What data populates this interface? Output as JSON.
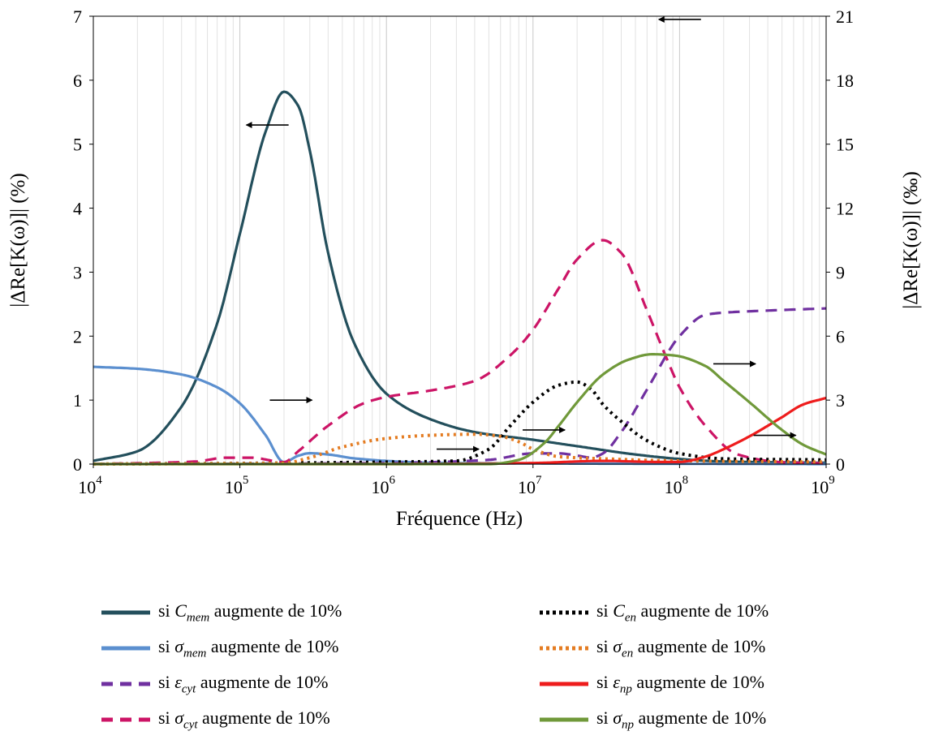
{
  "chart_data": {
    "type": "line",
    "xlabel": "Fréquence (Hz)",
    "ylabel_left": "|ΔRe[K(ω)]| (%)",
    "ylabel_right": "|ΔRe[K(ω)]| (‰)",
    "x_scale": "log",
    "xlim": [
      10000,
      1000000000
    ],
    "ylim_left": [
      0,
      7
    ],
    "ylim_right": [
      0,
      21
    ],
    "x_ticks": [
      {
        "base": "10",
        "exp": "4"
      },
      {
        "base": "10",
        "exp": "5"
      },
      {
        "base": "10",
        "exp": "6"
      },
      {
        "base": "10",
        "exp": "7"
      },
      {
        "base": "10",
        "exp": "8"
      },
      {
        "base": "10",
        "exp": "9"
      }
    ],
    "y_ticks_left": [
      "0",
      "1",
      "2",
      "3",
      "4",
      "5",
      "6",
      "7"
    ],
    "y_ticks_right": [
      "0",
      "3",
      "6",
      "9",
      "12",
      "15",
      "18",
      "21"
    ],
    "grid": "log-minor vertical, horizontal major",
    "series": [
      {
        "name": "si C_mem augmente de 10%",
        "sym": "C",
        "sub": "mem",
        "axis": "left",
        "color": "#234f5c",
        "dash": "solid",
        "x": [
          10000,
          20000,
          40000,
          70000,
          100000,
          150000,
          200000,
          250000,
          300000,
          400000,
          600000,
          1000000,
          2000000,
          4000000,
          10000000,
          20000000,
          50000000,
          100000000,
          200000000,
          1000000000
        ],
        "y": [
          0.05,
          0.2,
          0.9,
          2.2,
          3.6,
          5.2,
          5.82,
          5.6,
          4.9,
          3.3,
          1.9,
          1.1,
          0.7,
          0.5,
          0.38,
          0.28,
          0.15,
          0.08,
          0.04,
          0.02
        ]
      },
      {
        "name": "si σ_mem augmente de 10%",
        "sym": "σ",
        "sub": "mem",
        "axis": "left",
        "color": "#5b8fcf",
        "dash": "solid",
        "x": [
          10000,
          20000,
          40000,
          70000,
          100000,
          150000,
          200000,
          250000,
          300000,
          400000,
          600000,
          1000000,
          2000000,
          10000000,
          1000000000
        ],
        "y": [
          1.52,
          1.49,
          1.4,
          1.2,
          0.95,
          0.45,
          0.03,
          0.13,
          0.17,
          0.15,
          0.09,
          0.05,
          0.02,
          0.01,
          0.0
        ]
      },
      {
        "name": "si ε_cyt augmente de 10%",
        "sym": "ε",
        "sub": "cyt",
        "axis": "right",
        "color": "#7030a0",
        "dash": "dash",
        "x": [
          10000,
          1000000,
          5000000,
          10000000,
          15000000,
          20000000,
          25000000,
          30000000,
          40000000,
          60000000,
          100000000,
          150000000,
          200000000,
          400000000,
          1000000000
        ],
        "y": [
          0.0,
          0.05,
          0.2,
          0.5,
          0.5,
          0.4,
          0.3,
          0.5,
          1.5,
          3.5,
          6.0,
          7.0,
          7.1,
          7.2,
          7.3
        ]
      },
      {
        "name": "si σ_cyt augmente de 10%",
        "sym": "σ",
        "sub": "cyt",
        "axis": "left",
        "color": "#cc1466",
        "dash": "dash",
        "x": [
          10000,
          50000,
          80000,
          120000,
          200000,
          250000,
          400000,
          700000,
          1000000,
          2000000,
          4000000,
          7000000,
          10000000,
          15000000,
          20000000,
          30000000,
          40000000,
          60000000,
          80000000,
          100000000,
          150000000,
          250000000,
          500000000,
          1000000000
        ],
        "y": [
          0.0,
          0.04,
          0.1,
          0.1,
          0.03,
          0.2,
          0.6,
          0.95,
          1.05,
          1.15,
          1.3,
          1.7,
          2.1,
          2.75,
          3.2,
          3.5,
          3.3,
          2.4,
          1.7,
          1.2,
          0.6,
          0.15,
          0.03,
          0.01
        ]
      },
      {
        "name": "si C_en augmente de 10%",
        "sym": "C",
        "sub": "en",
        "axis": "right",
        "color": "#000000",
        "dash": "dot",
        "x": [
          10000,
          200000,
          1000000,
          3000000,
          5000000,
          7000000,
          10000000,
          15000000,
          20000000,
          25000000,
          30000000,
          40000000,
          60000000,
          100000000,
          200000000,
          1000000000
        ],
        "y": [
          0.0,
          0.05,
          0.1,
          0.15,
          0.7,
          1.8,
          2.9,
          3.7,
          3.85,
          3.5,
          2.8,
          2.0,
          1.1,
          0.5,
          0.25,
          0.2
        ]
      },
      {
        "name": "si σ_en augmente de 10%",
        "sym": "σ",
        "sub": "en",
        "axis": "right",
        "color": "#e47c22",
        "dash": "dot",
        "x": [
          10000,
          100000,
          200000,
          300000,
          500000,
          1000000,
          2000000,
          4000000,
          6000000,
          8000000,
          10000000,
          15000000,
          30000000,
          100000000,
          1000000000
        ],
        "y": [
          0.0,
          0.03,
          0.05,
          0.3,
          0.8,
          1.2,
          1.35,
          1.4,
          1.3,
          1.05,
          0.7,
          0.35,
          0.25,
          0.15,
          0.1
        ]
      },
      {
        "name": "si ε_np augmente de 10%",
        "sym": "ε",
        "sub": "np",
        "axis": "right",
        "color": "#ee1c1c",
        "dash": "solid",
        "x": [
          10000,
          1000000,
          10000000,
          30000000,
          70000000,
          100000000,
          150000000,
          200000000,
          300000000,
          500000000,
          700000000,
          1000000000
        ],
        "y": [
          0.0,
          0.0,
          0.05,
          0.15,
          0.1,
          0.1,
          0.35,
          0.7,
          1.3,
          2.2,
          2.8,
          3.1
        ]
      },
      {
        "name": "si σ_np augmente de 10%",
        "sym": "σ",
        "sub": "np",
        "axis": "right",
        "color": "#70993a",
        "dash": "solid",
        "x": [
          10000,
          5000000,
          8000000,
          12000000,
          15000000,
          20000000,
          30000000,
          45000000,
          65000000,
          90000000,
          150000000,
          200000000,
          300000000,
          500000000,
          700000000,
          1000000000
        ],
        "y": [
          0.0,
          0.0,
          0.2,
          1.0,
          1.8,
          2.9,
          4.2,
          4.9,
          5.15,
          5.1,
          4.6,
          3.9,
          2.9,
          1.6,
          0.9,
          0.45
        ]
      }
    ]
  }
}
